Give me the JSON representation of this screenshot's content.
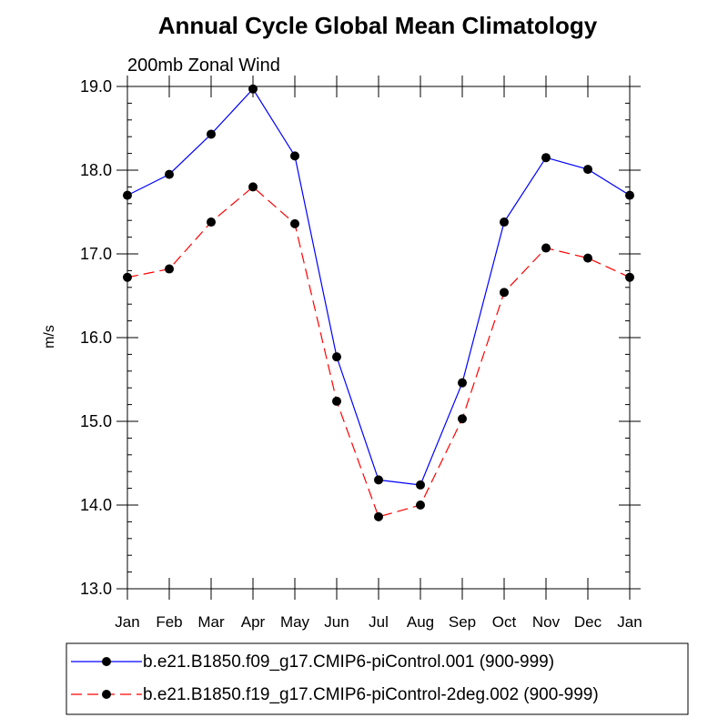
{
  "chart_data": {
    "type": "line",
    "title": "Annual Cycle Global Mean Climatology",
    "subtitle": "200mb Zonal Wind",
    "ylabel": "m/s",
    "xlabel": "",
    "categories": [
      "Jan",
      "Feb",
      "Mar",
      "Apr",
      "May",
      "Jun",
      "Jul",
      "Aug",
      "Sep",
      "Oct",
      "Nov",
      "Dec",
      "Jan"
    ],
    "ylim": [
      13.0,
      19.0
    ],
    "yticks": [
      13.0,
      14.0,
      15.0,
      16.0,
      17.0,
      18.0,
      19.0
    ],
    "ytick_labels": [
      "13.0",
      "14.0",
      "15.0",
      "16.0",
      "17.0",
      "18.0",
      "19.0"
    ],
    "minor_y_step": 0.2,
    "grid": false,
    "legend_position": "bottom",
    "series": [
      {
        "name": "b.e21.B1850.f09_g17.CMIP6-piControl.001 (900-999)",
        "color": "#0000ff",
        "dash": "solid",
        "marker": "filled-circle",
        "values": [
          17.7,
          17.95,
          18.43,
          18.97,
          18.17,
          15.77,
          14.3,
          14.24,
          15.46,
          17.38,
          18.15,
          18.01,
          17.7
        ]
      },
      {
        "name": "b.e21.B1850.f19_g17.CMIP6-piControl-2deg.002 (900-999)",
        "color": "#ff0000",
        "dash": "dashed",
        "marker": "filled-circle",
        "values": [
          16.72,
          16.82,
          17.38,
          17.8,
          17.36,
          15.24,
          13.86,
          14.0,
          15.03,
          16.54,
          17.07,
          16.95,
          16.72
        ]
      }
    ]
  }
}
